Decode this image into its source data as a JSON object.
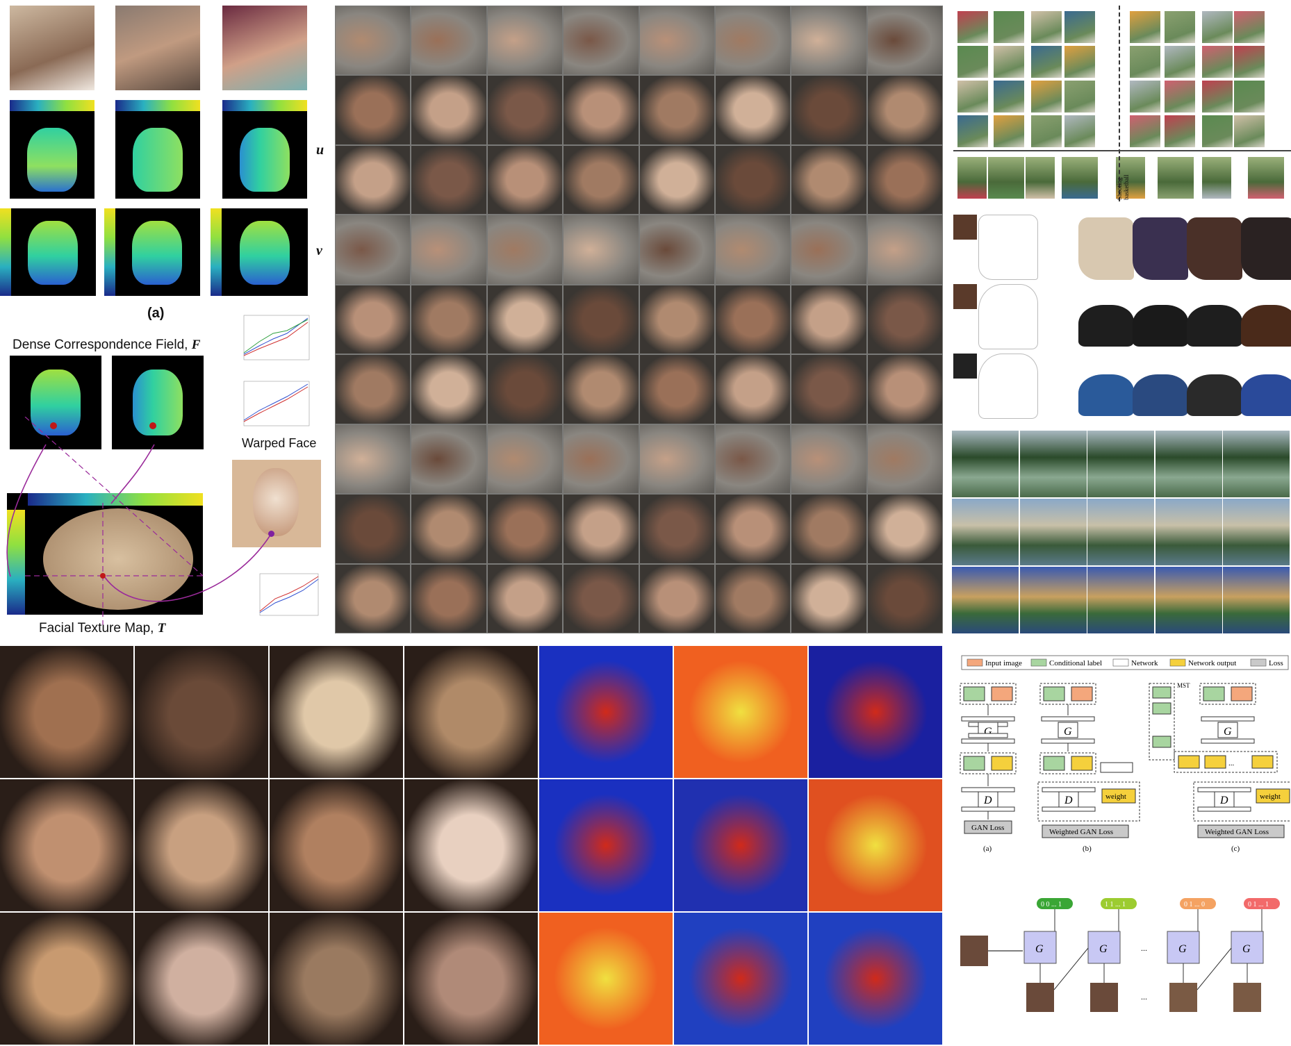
{
  "panel_a": {
    "u_label": "u",
    "v_label": "v",
    "caption_a": "(a)",
    "dcf_title": "Dense Correspondence Field, ",
    "dcf_symbol": "F",
    "warped_title": "Warped Face",
    "texture_title": "Facial Texture Map, ",
    "texture_symbol": "T"
  },
  "panel_act": {
    "labels": [
      "Shooting basketball"
    ]
  },
  "panel_arch": {
    "legend": [
      "Input image",
      "Conditional label",
      "Network",
      "Network output",
      "Loss"
    ],
    "legend_colors": [
      "#f4a77c",
      "#a8d5a0",
      "#ffffff",
      "#f5d03c",
      "#c9c9c9"
    ],
    "mst_label": "MST",
    "weight_label": "weight",
    "gan_loss": "GAN Loss",
    "weighted_gan_loss": "Weighted GAN Loss",
    "captions": [
      "(a)",
      "(b)",
      "(c)"
    ],
    "G": "G",
    "D": "D",
    "dots": "..."
  },
  "panel_seq": {
    "codes": [
      "0 0 ... 1",
      "1 1 ... 1",
      "0 1 ... 0",
      "0 1 ... 1"
    ],
    "code_colors": [
      "#3aa635",
      "#9ccc30",
      "#f4a262",
      "#f26a6a"
    ],
    "G": "G",
    "dots": "..."
  }
}
